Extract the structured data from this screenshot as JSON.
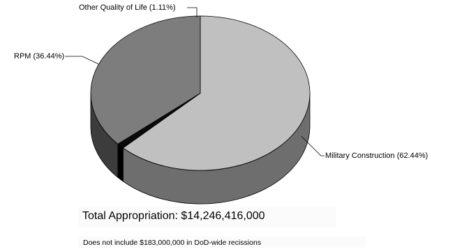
{
  "chart_data": {
    "type": "pie",
    "style": "3d",
    "slices": [
      {
        "label": "Military Construction (62.44%)",
        "value": 62.44,
        "color": "#c0c0c0",
        "side_color": "#6e6e6e"
      },
      {
        "label": "Other Quality of Life (1.11%)",
        "value": 1.11,
        "color": "#0a0a0a",
        "side_color": "#000000"
      },
      {
        "label": "RPM (36.44%)",
        "value": 36.44,
        "color": "#7d7d7d",
        "side_color": "#3c3c3c"
      }
    ],
    "total_label": "Total Appropriation: $14,246,416,000",
    "note": "Does not include $183,000,000 in DoD-wide recissions"
  }
}
